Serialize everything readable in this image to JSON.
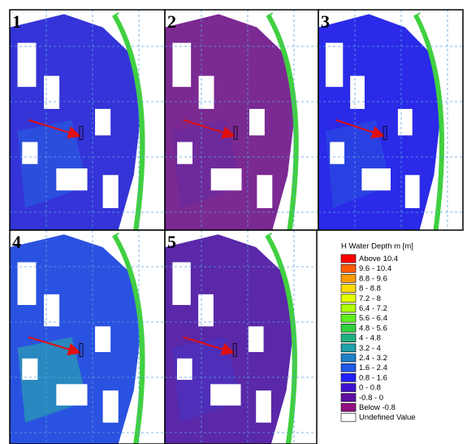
{
  "panels": [
    {
      "label": "1"
    },
    {
      "label": "2"
    },
    {
      "label": "3"
    },
    {
      "label": "4"
    },
    {
      "label": "5"
    }
  ],
  "legend": {
    "title": "H Water Depth m [m]",
    "items": [
      {
        "label": "Above 10.4",
        "color": "#ff0000"
      },
      {
        "label": "9.6 - 10.4",
        "color": "#ff5a00"
      },
      {
        "label": "8.8 - 9.6",
        "color": "#ff9a00"
      },
      {
        "label": "8 - 8.8",
        "color": "#ffd800"
      },
      {
        "label": "7.2 - 8",
        "color": "#e6ff00"
      },
      {
        "label": "6.4 - 7.2",
        "color": "#b0ff00"
      },
      {
        "label": "5.6 - 6.4",
        "color": "#60f020"
      },
      {
        "label": "4.8 - 5.6",
        "color": "#30d040"
      },
      {
        "label": "4 - 4.8",
        "color": "#20b080"
      },
      {
        "label": "3.2 - 4",
        "color": "#20a0a8"
      },
      {
        "label": "2.4 - 3.2",
        "color": "#2080c8"
      },
      {
        "label": "1.6 - 2.4",
        "color": "#2058e8"
      },
      {
        "label": "0.8 - 1.6",
        "color": "#2020ff"
      },
      {
        "label": "0 - 0.8",
        "color": "#4010d0"
      },
      {
        "label": "-0.8 - 0",
        "color": "#6010a0"
      },
      {
        "label": "Below -0.8",
        "color": "#901080"
      },
      {
        "label": "Undefined Value",
        "color": "#ffffff"
      }
    ]
  }
}
